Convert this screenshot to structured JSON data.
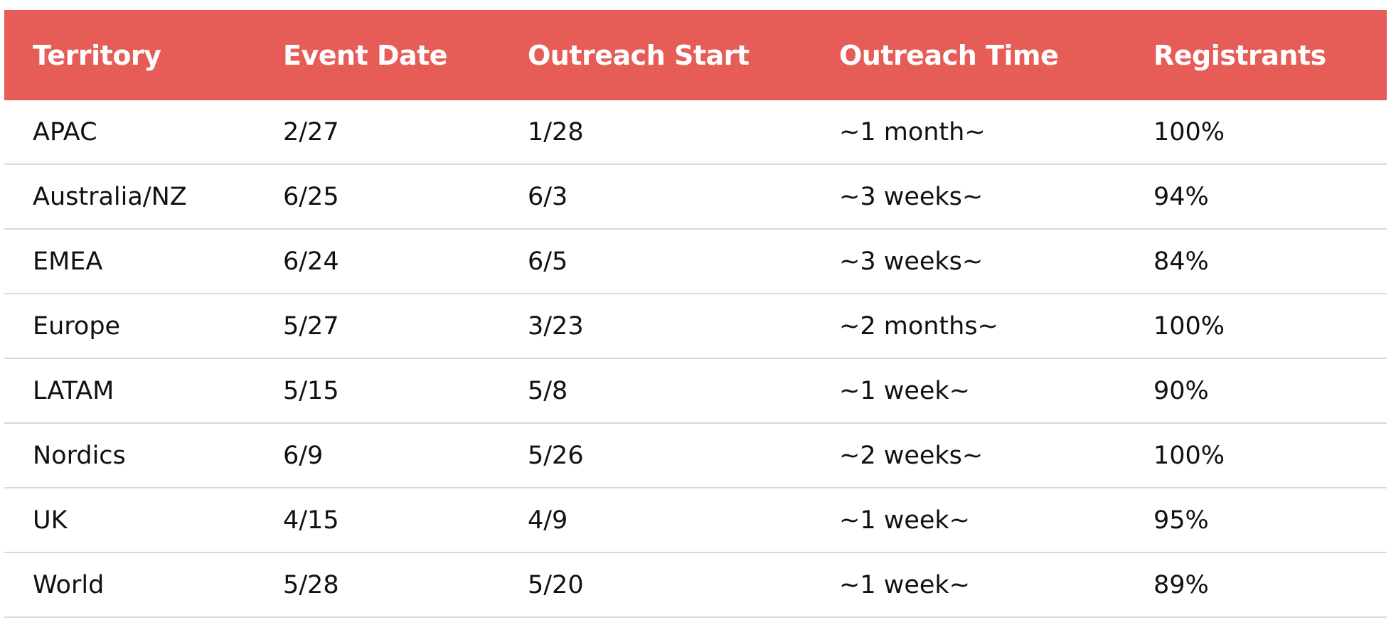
{
  "table": {
    "header_color": "#e65c56",
    "columns": [
      "Territory",
      "Event Date",
      "Outreach Start",
      "Outreach Time",
      "Registrants"
    ],
    "rows": [
      [
        "APAC",
        "2/27",
        "1/28",
        "~1 month~",
        "100%"
      ],
      [
        "Australia/NZ",
        "6/25",
        "6/3",
        "~3 weeks~",
        "94%"
      ],
      [
        "EMEA",
        "6/24",
        "6/5",
        "~3 weeks~",
        "84%"
      ],
      [
        "Europe",
        "5/27",
        "3/23",
        "~2 months~",
        "100%"
      ],
      [
        "LATAM",
        "5/15",
        "5/8",
        "~1 week~",
        "90%"
      ],
      [
        "Nordics",
        "6/9",
        "5/26",
        "~2 weeks~",
        "100%"
      ],
      [
        "UK",
        "4/15",
        "4/9",
        "~1 week~",
        "95%"
      ],
      [
        "World",
        "5/28",
        "5/20",
        "~1 week~",
        "89%"
      ]
    ]
  }
}
